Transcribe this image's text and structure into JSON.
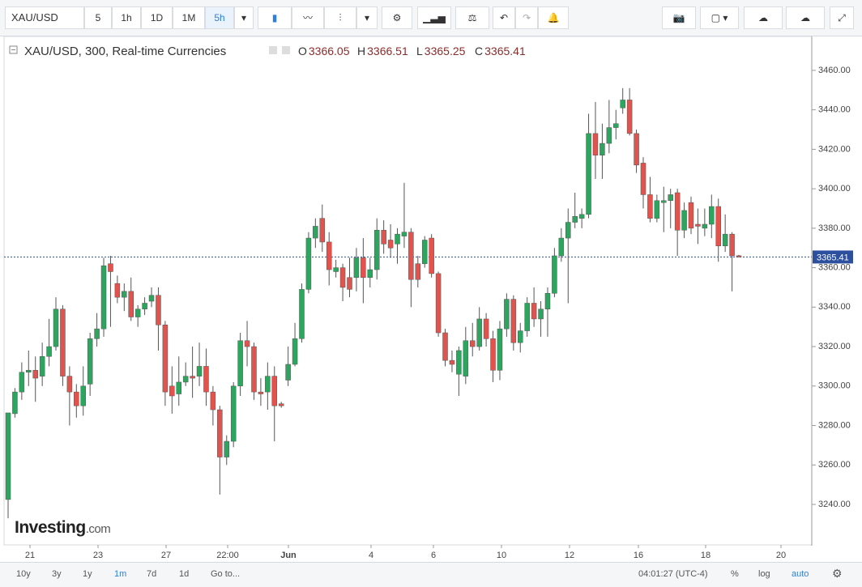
{
  "toolbar": {
    "symbol": "XAU/USD",
    "intervals": [
      "5",
      "1h",
      "1D",
      "1M",
      "5h"
    ],
    "active_interval": 4
  },
  "chart_data": {
    "type": "candlestick",
    "title": "XAU/USD, 300, Real-time Currencies",
    "ohlc_labels": [
      "O",
      "H",
      "L",
      "C"
    ],
    "x_labels": [
      "21",
      "23",
      "27",
      "22:00",
      "Jun",
      "4",
      "6",
      "10",
      "12",
      "16",
      "18",
      "20"
    ],
    "up_color": "#2ea55f",
    "down_color": "#e2534d",
    "open": [
      3242.5,
      3286,
      3297,
      3307,
      3308,
      3305,
      3315,
      3320,
      3339,
      3305,
      3297,
      3290,
      3301,
      3324,
      3329,
      3362,
      3352,
      3345,
      3348,
      3335,
      3339,
      3343,
      3346,
      3331,
      3300,
      3296,
      3302,
      3305,
      3305,
      3310,
      3297,
      3288,
      3264,
      3272,
      3300,
      3323,
      3320,
      3297,
      3297,
      3305,
      3291,
      3303,
      3311,
      3324,
      3349,
      3375,
      3385,
      3373,
      3358,
      3360,
      3355,
      3355,
      3365,
      3355,
      3359,
      3379,
      3374,
      3372,
      3376,
      3378,
      3362,
      3362,
      3375,
      3357,
      3327,
      3313,
      3306,
      3305,
      3323,
      3320,
      3334,
      3324,
      3308,
      3329,
      3344,
      3322,
      3328,
      3342,
      3334,
      3339,
      3347,
      3366,
      3375,
      3383,
      3385,
      3387,
      3428,
      3417,
      3423,
      3431,
      3441,
      3445,
      3428,
      3413,
      3397,
      3385,
      3393,
      3394,
      3398,
      3379,
      3393,
      3382,
      3380,
      3382,
      3391,
      3371,
      3377,
      3366.05
    ],
    "high": [
      3286.4,
      3299,
      3312,
      3318,
      3315,
      3322,
      3334,
      3345,
      3341,
      3310,
      3301,
      3310,
      3327,
      3337,
      3365,
      3366,
      3356,
      3352,
      3355,
      3341,
      3345,
      3350,
      3350,
      3333,
      3310,
      3315,
      3312,
      3320,
      3322,
      3319,
      3300,
      3290,
      3275,
      3302,
      3327,
      3333,
      3322,
      3304,
      3312,
      3310,
      3292,
      3320,
      3332,
      3352,
      3378,
      3385,
      3392,
      3378,
      3364,
      3362,
      3365,
      3370,
      3375,
      3365,
      3385,
      3384,
      3382,
      3380,
      3403,
      3380,
      3366,
      3376,
      3377,
      3358,
      3329,
      3318,
      3320,
      3330,
      3332,
      3340,
      3337,
      3328,
      3333,
      3347,
      3346,
      3332,
      3345,
      3350,
      3343,
      3350,
      3370,
      3380,
      3390,
      3398,
      3390,
      3438,
      3444,
      3433,
      3445,
      3440,
      3451,
      3451,
      3430,
      3416,
      3406,
      3397,
      3401,
      3400,
      3400,
      3393,
      3396,
      3390,
      3390,
      3397,
      3395,
      3387,
      3378,
      3366.51
    ],
    "low": [
      3233,
      3284,
      3293,
      3300,
      3292,
      3300,
      3310,
      3318,
      3300,
      3280,
      3284,
      3285,
      3295,
      3320,
      3325,
      3330,
      3342,
      3338,
      3333,
      3330,
      3336,
      3340,
      3318,
      3290,
      3286,
      3290,
      3300,
      3294,
      3300,
      3290,
      3280,
      3245,
      3260,
      3269,
      3295,
      3310,
      3293,
      3290,
      3288,
      3272,
      3289,
      3300,
      3310,
      3322,
      3347,
      3370,
      3368,
      3351,
      3355,
      3343,
      3345,
      3348,
      3342,
      3350,
      3354,
      3367,
      3365,
      3362,
      3370,
      3340,
      3350,
      3360,
      3355,
      3325,
      3310,
      3307,
      3295,
      3301,
      3315,
      3318,
      3320,
      3302,
      3303,
      3325,
      3318,
      3317,
      3325,
      3330,
      3325,
      3325,
      3345,
      3363,
      3342,
      3380,
      3380,
      3385,
      3405,
      3405,
      3418,
      3425,
      3438,
      3427,
      3408,
      3390,
      3383,
      3383,
      3378,
      3380,
      3366,
      3375,
      3377,
      3372,
      3376,
      3375,
      3363,
      3368,
      3348,
      3365.25
    ],
    "close": [
      3286.4,
      3297,
      3307,
      3308,
      3304,
      3315,
      3320,
      3339,
      3305,
      3297,
      3290,
      3300,
      3324,
      3329,
      3361,
      3358,
      3345,
      3348,
      3335,
      3339,
      3342,
      3346,
      3331,
      3297,
      3295,
      3302,
      3305,
      3304,
      3310,
      3297,
      3288,
      3264,
      3272,
      3300,
      3323,
      3320,
      3297,
      3296,
      3305,
      3290,
      3290,
      3311,
      3324,
      3349,
      3375,
      3381,
      3373,
      3359,
      3360,
      3350,
      3349,
      3365,
      3355,
      3359,
      3379,
      3372,
      3370,
      3377,
      3378,
      3354,
      3354,
      3374,
      3357,
      3327,
      3313,
      3311,
      3318,
      3323,
      3320,
      3334,
      3324,
      3308,
      3329,
      3344,
      3322,
      3328,
      3342,
      3334,
      3339,
      3347,
      3366,
      3375,
      3383,
      3386,
      3387,
      3428,
      3417,
      3423,
      3431,
      3433,
      3445,
      3428,
      3412,
      3397,
      3385,
      3394,
      3394,
      3397,
      3379,
      3389,
      3380,
      3381,
      3382,
      3391,
      3371,
      3377,
      3366,
      3365.41
    ],
    "ylim": [
      3219.9,
      3477.2
    ],
    "yticks": [
      {
        "value": 3240,
        "label": "3240.00"
      },
      {
        "value": 3260,
        "label": "3260.00"
      },
      {
        "value": 3280,
        "label": "3280.00"
      },
      {
        "value": 3300,
        "label": "3300.00"
      },
      {
        "value": 3320,
        "label": "3320.00"
      },
      {
        "value": 3340,
        "label": "3340.00"
      },
      {
        "value": 3360,
        "label": "3360.00"
      },
      {
        "value": 3380,
        "label": "3380.00"
      },
      {
        "value": 3400,
        "label": "3400.00"
      },
      {
        "value": 3420,
        "label": "3420.00"
      },
      {
        "value": 3440,
        "label": "3440.00"
      },
      {
        "value": 3460,
        "label": "3460.00"
      }
    ]
  },
  "watermark": {
    "brand": "Investing",
    "suffix": ".com"
  },
  "footer": {
    "ranges": [
      "10y",
      "3y",
      "1y",
      "1m",
      "7d",
      "1d"
    ],
    "active_range": 3,
    "goto": "Go to...",
    "time": "04:01:27 (UTC-4)",
    "options": [
      "%",
      "log",
      "auto"
    ],
    "active_option": 2
  }
}
